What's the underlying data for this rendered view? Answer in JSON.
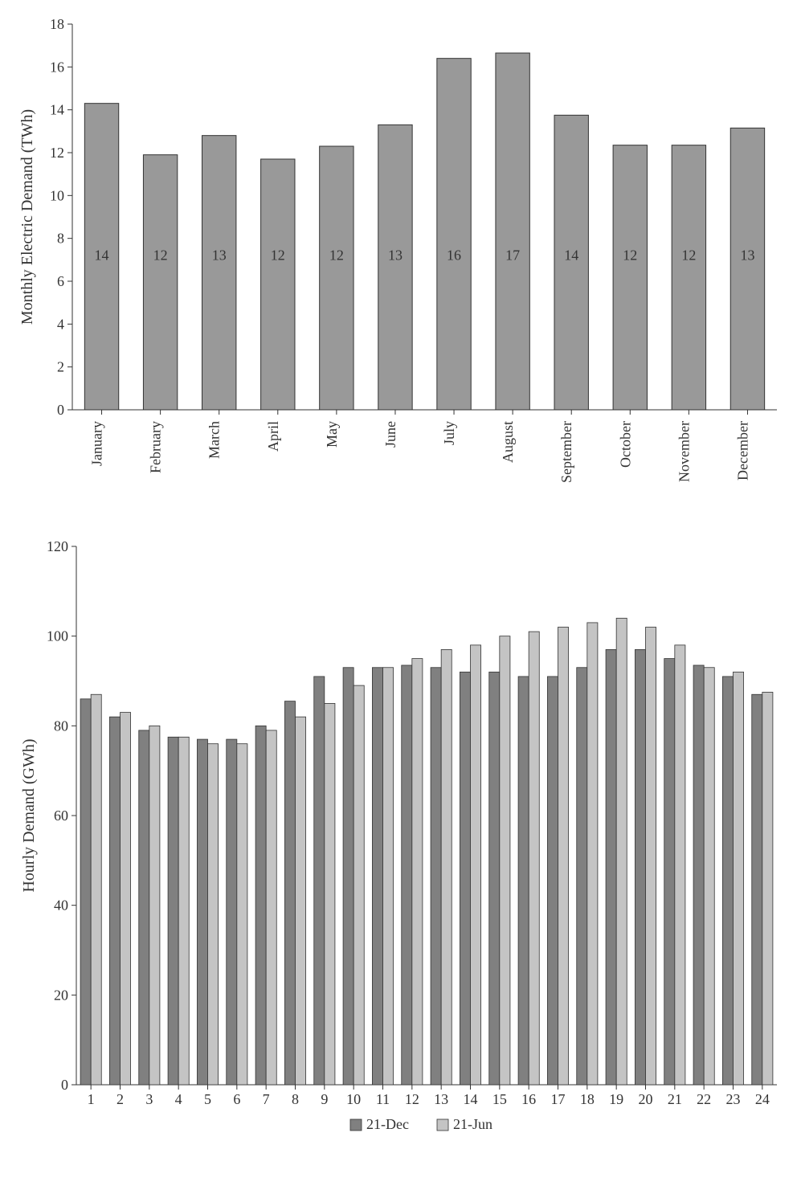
{
  "chart1": {
    "type": "bar",
    "ylabel": "Monthly Electric Demand (TWh)",
    "label_fontsize": 20,
    "categories": [
      "January",
      "February",
      "March",
      "April",
      "May",
      "June",
      "July",
      "August",
      "September",
      "October",
      "November",
      "December"
    ],
    "values": [
      14.3,
      11.9,
      12.8,
      11.7,
      12.3,
      13.3,
      16.4,
      16.65,
      13.75,
      12.35,
      12.35,
      13.15
    ],
    "bar_labels": [
      "14",
      "12",
      "13",
      "12",
      "12",
      "13",
      "16",
      "17",
      "14",
      "12",
      "12",
      "13"
    ],
    "bar_color": "#999999",
    "bar_stroke": "#333333",
    "ylim": [
      0,
      18
    ],
    "ytick_step": 2,
    "font_color": "#333333",
    "tick_fontsize": 18,
    "barlabel_fontsize": 18,
    "bar_width_ratio": 0.58,
    "background_color": "#ffffff"
  },
  "chart2": {
    "type": "grouped-bar",
    "ylabel": "Hourly Demand (GWh)",
    "label_fontsize": 20,
    "categories": [
      "1",
      "2",
      "3",
      "4",
      "5",
      "6",
      "7",
      "8",
      "9",
      "10",
      "11",
      "12",
      "13",
      "14",
      "15",
      "16",
      "17",
      "18",
      "19",
      "20",
      "21",
      "22",
      "23",
      "24"
    ],
    "series": [
      {
        "name": "21-Dec",
        "color": "#808080",
        "stroke": "#333333",
        "values": [
          86,
          82,
          79,
          77.5,
          77,
          77,
          80,
          85.5,
          91,
          93,
          93,
          93.5,
          93,
          92,
          92,
          91,
          91,
          93,
          97,
          97,
          95,
          93.5,
          91,
          87
        ]
      },
      {
        "name": "21-Jun",
        "color": "#c4c4c4",
        "stroke": "#333333",
        "values": [
          87,
          83,
          80,
          77.5,
          76,
          76,
          79,
          82,
          85,
          89,
          93,
          95,
          97,
          98,
          100,
          101,
          102,
          103,
          104,
          102,
          98,
          93,
          92,
          87.5
        ]
      }
    ],
    "ylim": [
      0,
      120
    ],
    "ytick_step": 20,
    "font_color": "#333333",
    "tick_fontsize": 18,
    "bar_width_ratio": 0.72,
    "background_color": "#ffffff",
    "legend": {
      "dec_label": "21-Dec",
      "jun_label": "21-Jun",
      "swatch_size": 14,
      "fontsize": 18
    }
  }
}
